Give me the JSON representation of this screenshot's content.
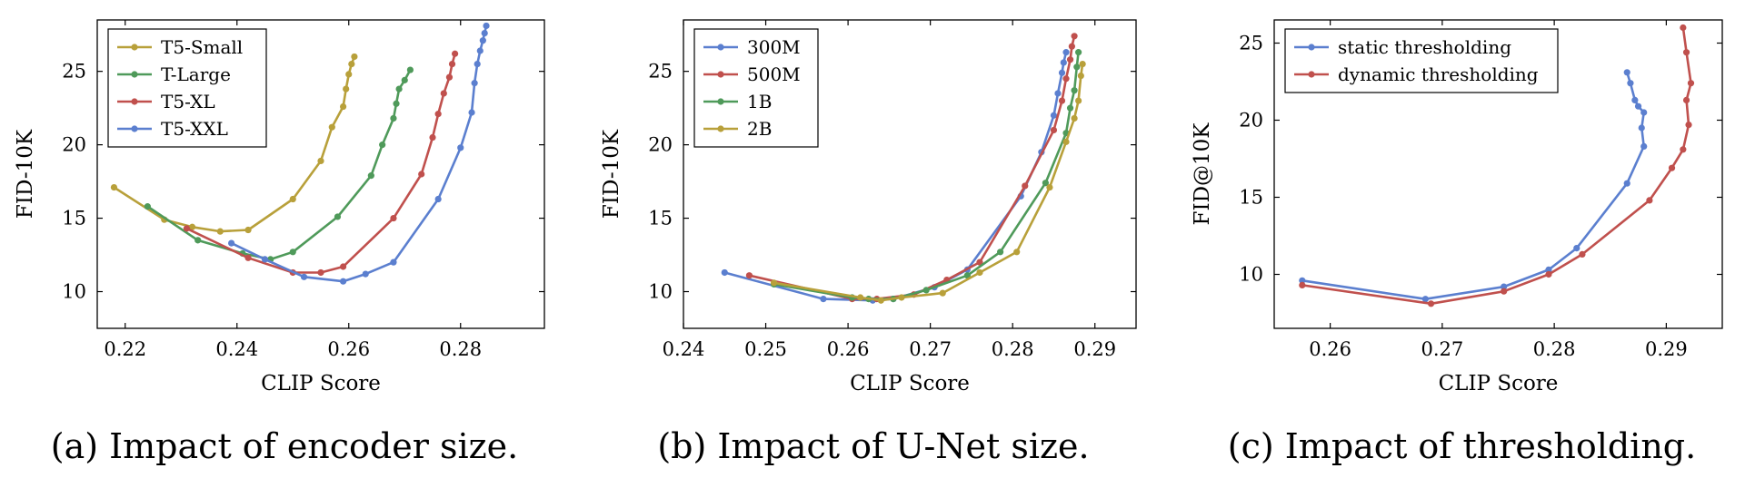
{
  "chart_data": [
    {
      "type": "line",
      "caption": "(a) Impact of encoder size.",
      "xlabel": "CLIP Score",
      "ylabel": "FID-10K",
      "xlim": [
        0.215,
        0.295
      ],
      "ylim": [
        7.5,
        28.5
      ],
      "xticks": [
        0.22,
        0.24,
        0.26,
        0.28
      ],
      "yticks": [
        10,
        15,
        20,
        25
      ],
      "grid": false,
      "legend": "top-left",
      "series": [
        {
          "name": "T5-Small",
          "color": "#b8a03a",
          "x": [
            0.218,
            0.227,
            0.232,
            0.237,
            0.242,
            0.25,
            0.255,
            0.257,
            0.259,
            0.2595,
            0.26,
            0.2605,
            0.261
          ],
          "y": [
            17.1,
            14.9,
            14.4,
            14.1,
            14.2,
            16.3,
            18.9,
            21.2,
            22.6,
            23.8,
            24.8,
            25.5,
            26.0
          ]
        },
        {
          "name": "T-Large",
          "color": "#4f9a5a",
          "x": [
            0.224,
            0.233,
            0.241,
            0.246,
            0.25,
            0.258,
            0.264,
            0.266,
            0.268,
            0.2685,
            0.269,
            0.27,
            0.271
          ],
          "y": [
            15.8,
            13.5,
            12.6,
            12.2,
            12.7,
            15.1,
            17.9,
            20.0,
            21.8,
            22.8,
            23.8,
            24.4,
            25.1
          ]
        },
        {
          "name": "T5-XL",
          "color": "#c0504d",
          "x": [
            0.231,
            0.242,
            0.25,
            0.255,
            0.259,
            0.268,
            0.273,
            0.275,
            0.276,
            0.277,
            0.278,
            0.2785,
            0.279
          ],
          "y": [
            14.3,
            12.3,
            11.3,
            11.3,
            11.7,
            15.0,
            18.0,
            20.5,
            22.1,
            23.5,
            24.6,
            25.5,
            26.2
          ]
        },
        {
          "name": "T5-XXL",
          "color": "#5b7fcf",
          "x": [
            0.239,
            0.245,
            0.252,
            0.259,
            0.263,
            0.268,
            0.276,
            0.28,
            0.282,
            0.2825,
            0.283,
            0.2835,
            0.284,
            0.2843,
            0.2846
          ],
          "y": [
            13.3,
            12.2,
            11.0,
            10.7,
            11.2,
            12.0,
            16.3,
            19.8,
            22.2,
            24.2,
            25.5,
            26.4,
            27.1,
            27.6,
            28.1
          ]
        }
      ]
    },
    {
      "type": "line",
      "caption": "(b) Impact of U-Net size.",
      "xlabel": "CLIP Score",
      "ylabel": "FID-10K",
      "xlim": [
        0.24,
        0.295
      ],
      "ylim": [
        7.5,
        28.5
      ],
      "xticks": [
        0.24,
        0.25,
        0.26,
        0.27,
        0.28,
        0.29
      ],
      "yticks": [
        10,
        15,
        20,
        25
      ],
      "grid": false,
      "legend": "top-left",
      "series": [
        {
          "name": "300M",
          "color": "#5b7fcf",
          "x": [
            0.245,
            0.257,
            0.263,
            0.2655,
            0.2705,
            0.2745,
            0.281,
            0.2835,
            0.285,
            0.2855,
            0.286,
            0.2862,
            0.2865
          ],
          "y": [
            11.3,
            9.5,
            9.4,
            9.5,
            10.3,
            11.5,
            16.5,
            19.5,
            22.0,
            23.5,
            24.9,
            25.6,
            26.3
          ]
        },
        {
          "name": "500M",
          "color": "#c0504d",
          "x": [
            0.248,
            0.2605,
            0.2635,
            0.268,
            0.272,
            0.276,
            0.2815,
            0.285,
            0.286,
            0.2865,
            0.287,
            0.2872,
            0.2875
          ],
          "y": [
            11.1,
            9.5,
            9.5,
            9.8,
            10.8,
            12.0,
            17.2,
            21.0,
            23.0,
            24.5,
            25.8,
            26.7,
            27.4
          ]
        },
        {
          "name": "1B",
          "color": "#4f9a5a",
          "x": [
            0.251,
            0.2605,
            0.2625,
            0.2655,
            0.2695,
            0.2745,
            0.2785,
            0.284,
            0.2865,
            0.287,
            0.2875,
            0.2878,
            0.288
          ],
          "y": [
            10.5,
            9.6,
            9.5,
            9.5,
            10.1,
            11.1,
            12.7,
            17.4,
            20.8,
            22.5,
            23.7,
            25.3,
            26.3
          ]
        },
        {
          "name": "2B",
          "color": "#b8a03a",
          "x": [
            0.251,
            0.2615,
            0.264,
            0.2665,
            0.2715,
            0.276,
            0.2805,
            0.2845,
            0.2865,
            0.2875,
            0.288,
            0.2883,
            0.2885
          ],
          "y": [
            10.6,
            9.6,
            9.4,
            9.6,
            9.9,
            11.3,
            12.7,
            17.1,
            20.2,
            21.8,
            23.0,
            24.7,
            25.5
          ]
        }
      ]
    },
    {
      "type": "line",
      "caption": "(c) Impact of thresholding.",
      "xlabel": "CLIP Score",
      "ylabel": "FID@10K",
      "xlim": [
        0.255,
        0.295
      ],
      "ylim": [
        6.5,
        26.5
      ],
      "xticks": [
        0.26,
        0.27,
        0.28,
        0.29
      ],
      "yticks": [
        10,
        15,
        20,
        25
      ],
      "grid": false,
      "legend": "top-left",
      "series": [
        {
          "name": "static thresholding",
          "color": "#5b7fcf",
          "x": [
            0.2575,
            0.2685,
            0.2755,
            0.2795,
            0.282,
            0.2865,
            0.288,
            0.2878,
            0.288,
            0.2875,
            0.2872,
            0.2868,
            0.2865
          ],
          "y": [
            9.6,
            8.4,
            9.2,
            10.3,
            11.7,
            15.9,
            18.3,
            19.5,
            20.5,
            20.9,
            21.3,
            22.4,
            23.1
          ]
        },
        {
          "name": "dynamic thresholding",
          "color": "#c0504d",
          "x": [
            0.2575,
            0.269,
            0.2755,
            0.2795,
            0.2825,
            0.2885,
            0.2905,
            0.2915,
            0.292,
            0.2918,
            0.2922,
            0.2918,
            0.2915
          ],
          "y": [
            9.3,
            8.1,
            8.9,
            10.0,
            11.3,
            14.8,
            16.9,
            18.1,
            19.7,
            21.3,
            22.4,
            24.4,
            26.0
          ]
        }
      ]
    }
  ]
}
